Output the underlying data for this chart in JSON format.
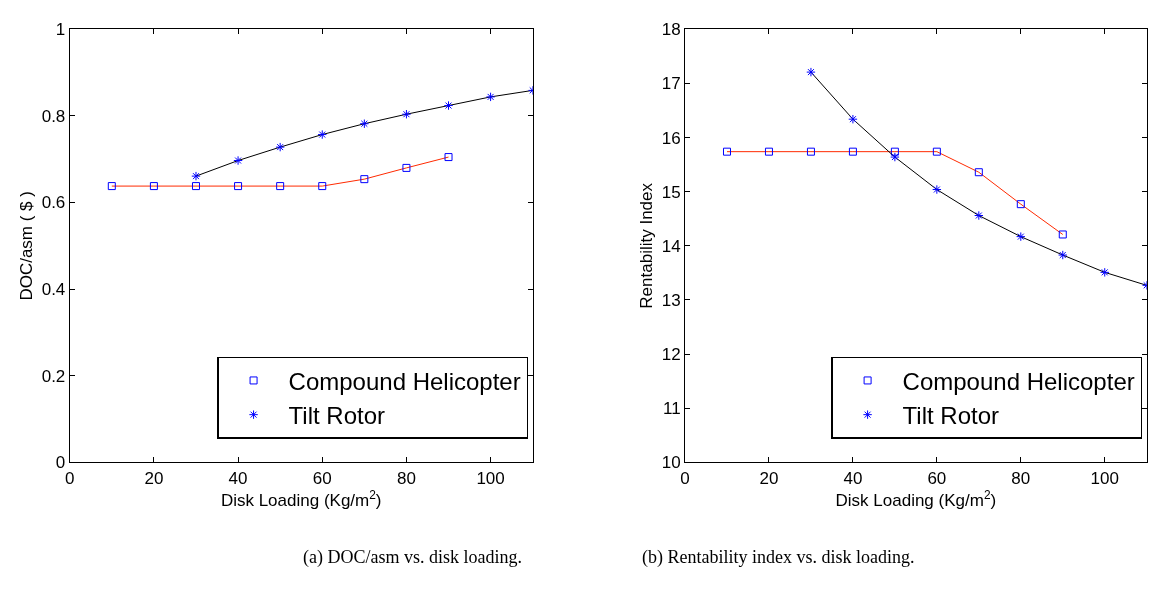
{
  "chart_data": [
    {
      "type": "line",
      "xlabel": "Disk Loading (Kg/m$^{2}$)",
      "ylabel": "DOC/asm ( $ )",
      "xlim": [
        0,
        110
      ],
      "xticks": [
        0,
        20,
        40,
        60,
        80,
        100
      ],
      "ylim": [
        0,
        1
      ],
      "yticks": [
        0,
        0.2,
        0.4,
        0.6,
        0.8,
        1
      ],
      "legend": "bottom right",
      "series": [
        {
          "name": "Compound Helicopter",
          "color": "#ff2a00",
          "marker": "square",
          "x": [
            10,
            20,
            30,
            40,
            50,
            60,
            70,
            80,
            90
          ],
          "values": [
            0.638,
            0.638,
            0.638,
            0.638,
            0.638,
            0.638,
            0.654,
            0.68,
            0.705
          ]
        },
        {
          "name": "Tilt Rotor",
          "color": "#000000",
          "marker": "cross",
          "x": [
            30,
            40,
            50,
            60,
            70,
            80,
            90,
            100,
            110
          ],
          "values": [
            0.661,
            0.697,
            0.728,
            0.757,
            0.782,
            0.804,
            0.824,
            0.844,
            0.859
          ]
        }
      ],
      "annotations": [
        "(a) DOC/asm vs. disk loading."
      ]
    },
    {
      "type": "line",
      "xlabel": "Disk Loading (Kg/m$^{2}$)",
      "ylabel": "Rentability Index",
      "xlim": [
        0,
        110
      ],
      "xticks": [
        0,
        20,
        40,
        60,
        80,
        100
      ],
      "ylim": [
        10,
        18
      ],
      "yticks": [
        10,
        11,
        12,
        13,
        14,
        15,
        16,
        17,
        18
      ],
      "legend": "bottom right",
      "series": [
        {
          "name": "Compound Helicopter",
          "color": "#ff2a00",
          "marker": "square",
          "x": [
            10,
            20,
            30,
            40,
            50,
            60,
            70,
            80,
            90
          ],
          "values": [
            15.74,
            15.74,
            15.74,
            15.74,
            15.74,
            15.74,
            15.36,
            14.77,
            14.21
          ]
        },
        {
          "name": "Tilt Rotor",
          "color": "#000000",
          "marker": "cross",
          "x": [
            30,
            40,
            50,
            60,
            70,
            80,
            90,
            100,
            110
          ],
          "values": [
            17.21,
            16.34,
            15.64,
            15.04,
            14.56,
            14.17,
            13.83,
            13.51,
            13.27
          ]
        }
      ],
      "annotations": [
        "(b) Rentability index vs. disk loading."
      ]
    }
  ]
}
